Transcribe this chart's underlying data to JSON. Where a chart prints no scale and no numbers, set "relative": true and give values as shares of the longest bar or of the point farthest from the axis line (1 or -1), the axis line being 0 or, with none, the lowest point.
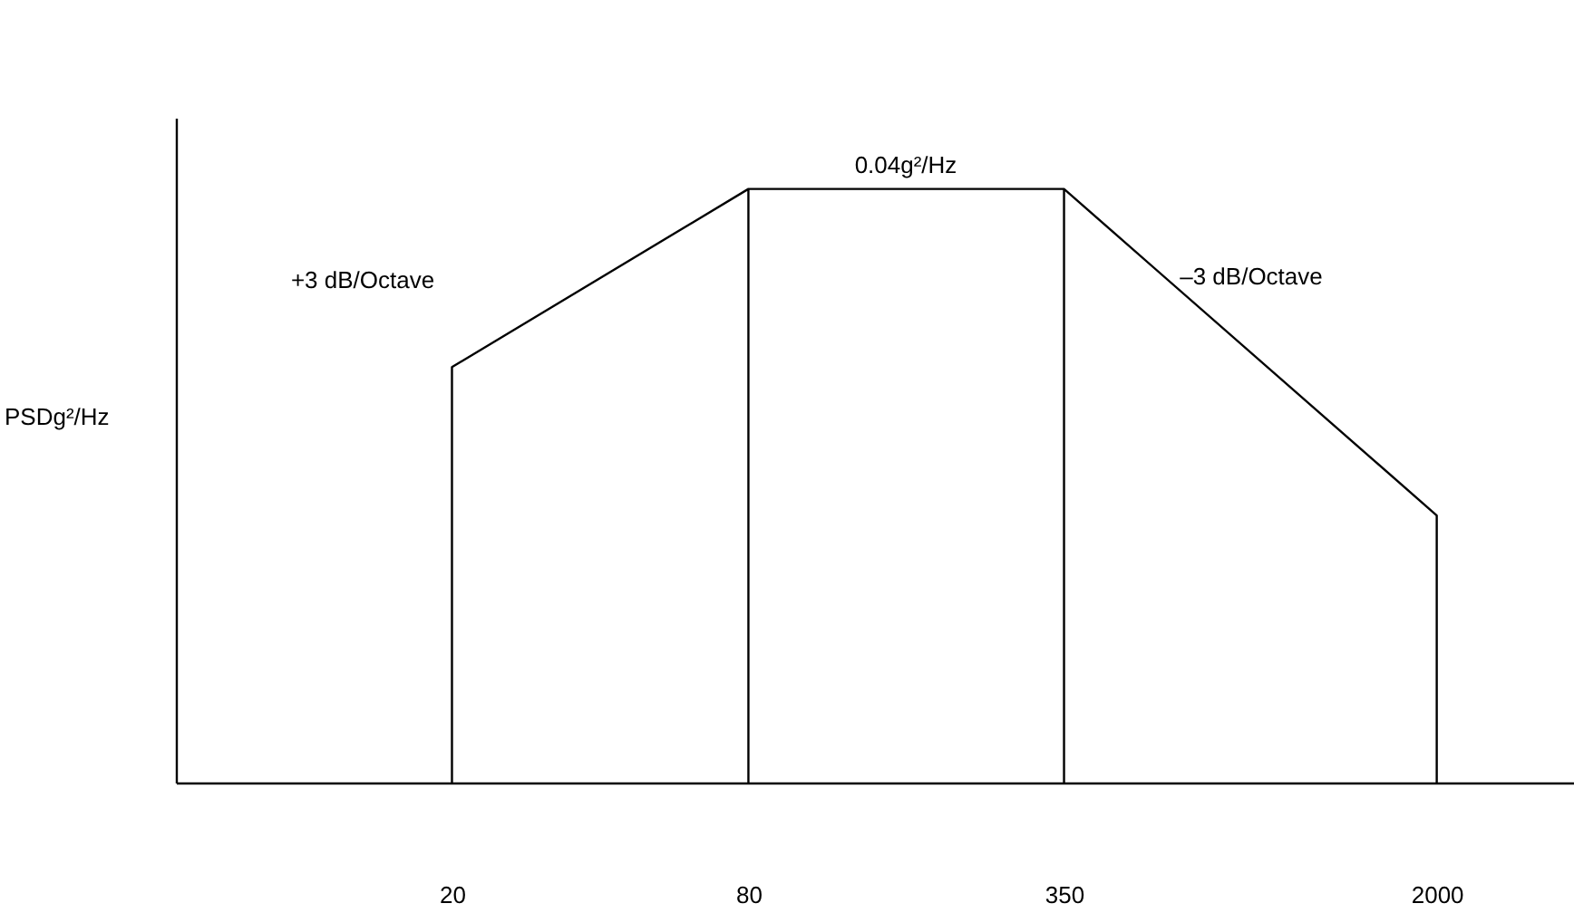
{
  "chart_data": {
    "type": "line",
    "relative": true,
    "log": "x",
    "ylabel": "PSDg²/Hz",
    "xlim": [
      5.5,
      3800
    ],
    "xticks": [
      20,
      80,
      350,
      {
        "value": 2000,
        "label": "2000"
      }
    ],
    "series": [
      {
        "color": "#000000",
        "x": [
          20,
          20,
          80,
          80,
          80,
          350,
          350,
          350,
          2000,
          2000
        ],
        "values": [
          0,
          0.7,
          1,
          0,
          1,
          1,
          0,
          1,
          0.45,
          0
        ]
      }
    ],
    "annotations": [
      {
        "text": "0.04g²/Hz",
        "x": 167,
        "y": 1
      },
      "+3 dB/Octave",
      "–3 dB/Octave"
    ]
  }
}
